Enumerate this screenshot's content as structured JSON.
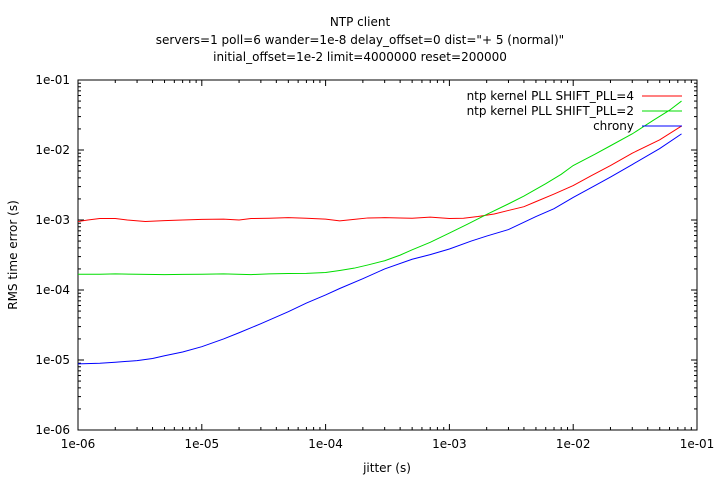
{
  "chart_data": {
    "type": "line",
    "title": "NTP client",
    "subtitle_lines": [
      "servers=1 poll=6 wander=1e-8 delay_offset=0 dist=\"+ 5 (normal)\"",
      "initial_offset=1e-2 limit=4000000 reset=200000"
    ],
    "xlabel": "jitter (s)",
    "ylabel": "RMS time error (s)",
    "xscale": "log",
    "yscale": "log",
    "xlim": [
      1e-06,
      0.1
    ],
    "ylim": [
      1e-06,
      0.1
    ],
    "x_tick_labels": [
      "1e-06",
      "1e-05",
      "1e-04",
      "1e-03",
      "1e-02",
      "1e-01"
    ],
    "y_tick_labels": [
      "1e-06",
      "1e-05",
      "1e-04",
      "1e-03",
      "1e-02",
      "1e-01"
    ],
    "legend_position": "top-right",
    "grid": false,
    "series": [
      {
        "name": "ntp kernel PLL SHIFT_PLL=4",
        "color": "#ff0000",
        "points": [
          [
            1e-06,
            0.00095
          ],
          [
            1.2e-06,
            0.001
          ],
          [
            1.5e-06,
            0.00105
          ],
          [
            2e-06,
            0.00105
          ],
          [
            2.5e-06,
            0.001
          ],
          [
            3.5e-06,
            0.00095
          ],
          [
            5e-06,
            0.00098
          ],
          [
            7e-06,
            0.001
          ],
          [
            1e-05,
            0.00102
          ],
          [
            1.5e-05,
            0.00103
          ],
          [
            2e-05,
            0.001
          ],
          [
            2.5e-05,
            0.00105
          ],
          [
            3.5e-05,
            0.00106
          ],
          [
            5e-05,
            0.00108
          ],
          [
            7e-05,
            0.00106
          ],
          [
            0.0001,
            0.00103
          ],
          [
            0.00013,
            0.00097
          ],
          [
            0.00017,
            0.00102
          ],
          [
            0.00022,
            0.00107
          ],
          [
            0.0003,
            0.00108
          ],
          [
            0.0004,
            0.00107
          ],
          [
            0.0005,
            0.00106
          ],
          [
            0.0007,
            0.0011
          ],
          [
            0.001,
            0.00105
          ],
          [
            0.0013,
            0.00106
          ],
          [
            0.0017,
            0.00112
          ],
          [
            0.0023,
            0.00122
          ],
          [
            0.003,
            0.00137
          ],
          [
            0.004,
            0.00155
          ],
          [
            0.005,
            0.00183
          ],
          [
            0.007,
            0.00235
          ],
          [
            0.01,
            0.0031
          ],
          [
            0.014,
            0.0043
          ],
          [
            0.02,
            0.006
          ],
          [
            0.03,
            0.009
          ],
          [
            0.05,
            0.014
          ],
          [
            0.075,
            0.022
          ]
        ]
      },
      {
        "name": "ntp kernel PLL SHIFT_PLL=2",
        "color": "#00dd00",
        "points": [
          [
            1e-06,
            0.000168
          ],
          [
            1.5e-06,
            0.000168
          ],
          [
            2e-06,
            0.00017
          ],
          [
            3e-06,
            0.000168
          ],
          [
            5e-06,
            0.000166
          ],
          [
            7e-06,
            0.000167
          ],
          [
            1e-05,
            0.000168
          ],
          [
            1.5e-05,
            0.00017
          ],
          [
            2.5e-05,
            0.000166
          ],
          [
            3.5e-05,
            0.00017
          ],
          [
            5e-05,
            0.000172
          ],
          [
            7e-05,
            0.000173
          ],
          [
            0.0001,
            0.000178
          ],
          [
            0.00013,
            0.00019
          ],
          [
            0.00017,
            0.000205
          ],
          [
            0.00022,
            0.000228
          ],
          [
            0.0003,
            0.000262
          ],
          [
            0.0004,
            0.000315
          ],
          [
            0.0005,
            0.000375
          ],
          [
            0.0007,
            0.00048
          ],
          [
            0.001,
            0.00065
          ],
          [
            0.0014,
            0.00087
          ],
          [
            0.002,
            0.0012
          ],
          [
            0.003,
            0.0017
          ],
          [
            0.004,
            0.0022
          ],
          [
            0.006,
            0.0033
          ],
          [
            0.008,
            0.0045
          ],
          [
            0.01,
            0.006
          ],
          [
            0.015,
            0.0087
          ],
          [
            0.02,
            0.0115
          ],
          [
            0.03,
            0.017
          ],
          [
            0.045,
            0.027
          ],
          [
            0.06,
            0.037
          ],
          [
            0.075,
            0.05
          ]
        ]
      },
      {
        "name": "chrony",
        "color": "#0000ff",
        "points": [
          [
            1e-06,
            8.8e-06
          ],
          [
            1.5e-06,
            9e-06
          ],
          [
            2e-06,
            9.3e-06
          ],
          [
            3e-06,
            9.8e-06
          ],
          [
            4e-06,
            1.05e-05
          ],
          [
            5e-06,
            1.15e-05
          ],
          [
            7e-06,
            1.3e-05
          ],
          [
            1e-05,
            1.55e-05
          ],
          [
            1.5e-05,
            2e-05
          ],
          [
            2e-05,
            2.45e-05
          ],
          [
            3e-05,
            3.3e-05
          ],
          [
            5e-05,
            4.9e-05
          ],
          [
            7e-05,
            6.5e-05
          ],
          [
            0.0001,
            8.5e-05
          ],
          [
            0.00013,
            0.000105
          ],
          [
            0.0002,
            0.000145
          ],
          [
            0.0003,
            0.0002
          ],
          [
            0.0005,
            0.000275
          ],
          [
            0.0007,
            0.00032
          ],
          [
            0.001,
            0.000385
          ],
          [
            0.0015,
            0.0005
          ],
          [
            0.002,
            0.00059
          ],
          [
            0.003,
            0.00073
          ],
          [
            0.005,
            0.00112
          ],
          [
            0.007,
            0.00145
          ],
          [
            0.01,
            0.0021
          ],
          [
            0.015,
            0.0031
          ],
          [
            0.02,
            0.0041
          ],
          [
            0.03,
            0.0062
          ],
          [
            0.05,
            0.0105
          ],
          [
            0.075,
            0.017
          ]
        ]
      }
    ]
  }
}
